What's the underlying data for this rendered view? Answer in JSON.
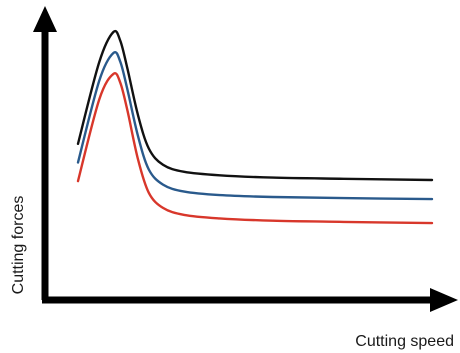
{
  "chart_data": {
    "type": "line",
    "title": "",
    "xlabel": "Cutting speed",
    "ylabel": "Cutting forces",
    "grid": false,
    "legend": "none",
    "tick_labels_shown": false,
    "axis_color": "#000000",
    "series": [
      {
        "color": "#111111",
        "points": [
          [
            0.0,
            0.52
          ],
          [
            0.06,
            0.87
          ],
          [
            0.1,
            1.0
          ],
          [
            0.12,
            0.96
          ],
          [
            0.14,
            0.84
          ],
          [
            0.17,
            0.64
          ],
          [
            0.2,
            0.5
          ],
          [
            0.24,
            0.43
          ],
          [
            0.3,
            0.4
          ],
          [
            0.4,
            0.385
          ],
          [
            0.55,
            0.375
          ],
          [
            0.75,
            0.37
          ],
          [
            1.0,
            0.365
          ]
        ]
      },
      {
        "color": "#2a5a8c",
        "points": [
          [
            0.0,
            0.44
          ],
          [
            0.06,
            0.79
          ],
          [
            0.1,
            0.91
          ],
          [
            0.12,
            0.87
          ],
          [
            0.14,
            0.75
          ],
          [
            0.17,
            0.55
          ],
          [
            0.2,
            0.41
          ],
          [
            0.24,
            0.345
          ],
          [
            0.3,
            0.315
          ],
          [
            0.4,
            0.3
          ],
          [
            0.55,
            0.292
          ],
          [
            0.75,
            0.287
          ],
          [
            1.0,
            0.283
          ]
        ]
      },
      {
        "color": "#d8372b",
        "points": [
          [
            0.0,
            0.36
          ],
          [
            0.06,
            0.71
          ],
          [
            0.1,
            0.82
          ],
          [
            0.12,
            0.78
          ],
          [
            0.14,
            0.66
          ],
          [
            0.17,
            0.45
          ],
          [
            0.2,
            0.31
          ],
          [
            0.24,
            0.245
          ],
          [
            0.3,
            0.215
          ],
          [
            0.4,
            0.2
          ],
          [
            0.55,
            0.19
          ],
          [
            0.75,
            0.185
          ],
          [
            1.0,
            0.18
          ]
        ]
      }
    ]
  }
}
